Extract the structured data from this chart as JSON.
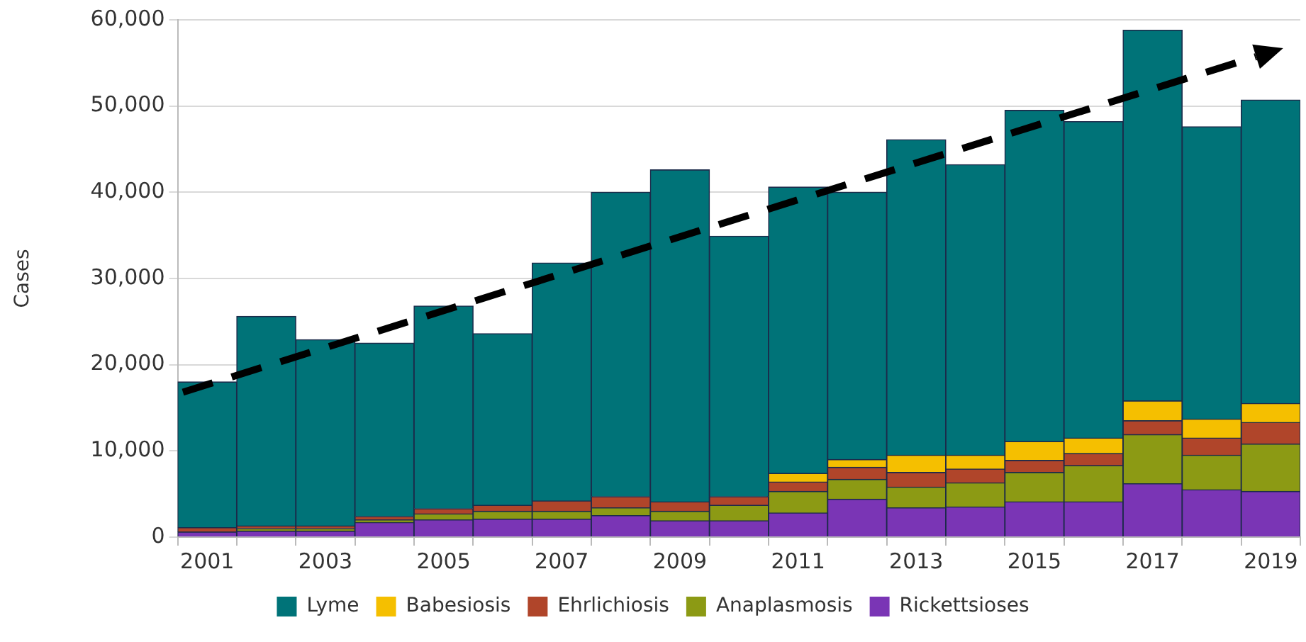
{
  "chart_data": {
    "type": "bar",
    "stacked": true,
    "ylabel": "Cases",
    "categories": [
      "2001",
      null,
      "2003",
      null,
      "2005",
      null,
      "2007",
      null,
      "2009",
      null,
      "2011",
      null,
      "2013",
      null,
      "2015",
      null,
      "2017",
      null,
      "2019"
    ],
    "ylim": [
      0,
      60000
    ],
    "yticks": [
      {
        "value": 0,
        "label": "0"
      },
      {
        "value": 10000,
        "label": "10,000"
      },
      {
        "value": 20000,
        "label": "20,000"
      },
      {
        "value": 30000,
        "label": "30,000"
      },
      {
        "value": 40000,
        "label": "40,000"
      },
      {
        "value": 50000,
        "label": "50,000"
      },
      {
        "value": 60000,
        "label": "60,000"
      }
    ],
    "grid": "y",
    "legend": "bottom",
    "series": [
      {
        "name": "Rickettsioses",
        "color": "#7a35b5",
        "values": [
          600,
          700,
          700,
          1700,
          2000,
          2100,
          2100,
          2500,
          1900,
          1900,
          2800,
          4400,
          3400,
          3500,
          4100,
          4100,
          6200,
          5500,
          5300
        ]
      },
      {
        "name": "Anaplasmosis",
        "color": "#8c9a14",
        "values": [
          0,
          300,
          300,
          300,
          700,
          900,
          900,
          900,
          1100,
          1800,
          2500,
          2300,
          2400,
          2800,
          3400,
          4200,
          5700,
          4000,
          5500
        ]
      },
      {
        "name": "Ehrlichiosis",
        "color": "#b0452a",
        "values": [
          500,
          300,
          300,
          400,
          600,
          700,
          1200,
          1300,
          1100,
          1000,
          1100,
          1400,
          1700,
          1600,
          1400,
          1400,
          1600,
          2000,
          2500
        ]
      },
      {
        "name": "Babesiosis",
        "color": "#f5bf00",
        "values": [
          0,
          null,
          null,
          0,
          0,
          0,
          0,
          0,
          0,
          0,
          1000,
          900,
          2000,
          1600,
          2200,
          1800,
          2300,
          2200,
          2200
        ]
      },
      {
        "name": "Lyme",
        "color": "#007378",
        "values": [
          16900,
          24300,
          21600,
          20100,
          23500,
          19900,
          27600,
          35300,
          38500,
          30200,
          33200,
          31000,
          36600,
          33700,
          38400,
          36700,
          43000,
          33900,
          35200
        ]
      }
    ]
  }
}
